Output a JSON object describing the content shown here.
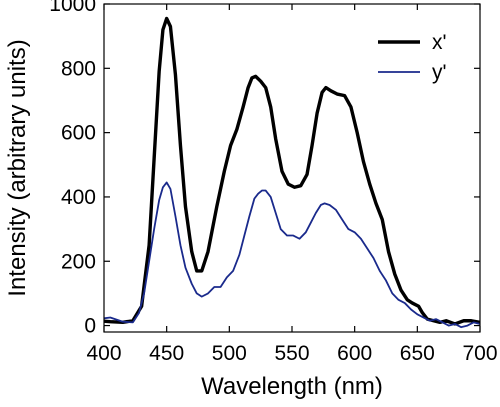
{
  "chart_data": {
    "type": "line",
    "title": "",
    "xlabel": "Wavelength (nm)",
    "ylabel": "Intensity (arbitrary units)",
    "xlim": [
      400,
      700
    ],
    "ylim": [
      -20,
      1000
    ],
    "xticks": [
      400,
      450,
      500,
      550,
      600,
      650,
      700
    ],
    "yticks": [
      0,
      200,
      400,
      600,
      800,
      1000
    ],
    "grid": false,
    "legend_position": "top-right",
    "series": [
      {
        "name": "x'",
        "color": "#000000",
        "points": [
          [
            395,
            15
          ],
          [
            405,
            12
          ],
          [
            415,
            10
          ],
          [
            423,
            15
          ],
          [
            430,
            60
          ],
          [
            436,
            250
          ],
          [
            440,
            520
          ],
          [
            444,
            790
          ],
          [
            447,
            920
          ],
          [
            450,
            955
          ],
          [
            453,
            930
          ],
          [
            457,
            780
          ],
          [
            461,
            560
          ],
          [
            465,
            370
          ],
          [
            470,
            230
          ],
          [
            474,
            170
          ],
          [
            478,
            170
          ],
          [
            483,
            230
          ],
          [
            490,
            370
          ],
          [
            496,
            480
          ],
          [
            501,
            560
          ],
          [
            506,
            610
          ],
          [
            511,
            680
          ],
          [
            515,
            740
          ],
          [
            518,
            770
          ],
          [
            521,
            775
          ],
          [
            525,
            760
          ],
          [
            529,
            740
          ],
          [
            533,
            680
          ],
          [
            537,
            580
          ],
          [
            542,
            480
          ],
          [
            547,
            440
          ],
          [
            552,
            430
          ],
          [
            557,
            435
          ],
          [
            562,
            470
          ],
          [
            566,
            560
          ],
          [
            570,
            660
          ],
          [
            574,
            725
          ],
          [
            577,
            740
          ],
          [
            581,
            730
          ],
          [
            586,
            720
          ],
          [
            592,
            715
          ],
          [
            597,
            680
          ],
          [
            602,
            600
          ],
          [
            607,
            510
          ],
          [
            612,
            440
          ],
          [
            617,
            380
          ],
          [
            622,
            330
          ],
          [
            627,
            230
          ],
          [
            632,
            160
          ],
          [
            637,
            110
          ],
          [
            642,
            80
          ],
          [
            646,
            70
          ],
          [
            651,
            60
          ],
          [
            654,
            40
          ],
          [
            658,
            20
          ],
          [
            663,
            15
          ],
          [
            668,
            10
          ],
          [
            673,
            15
          ],
          [
            680,
            5
          ],
          [
            687,
            15
          ],
          [
            693,
            15
          ],
          [
            700,
            10
          ],
          [
            706,
            5
          ]
        ]
      },
      {
        "name": "y'",
        "color": "#1a2a8c",
        "points": [
          [
            395,
            20
          ],
          [
            405,
            25
          ],
          [
            415,
            12
          ],
          [
            423,
            10
          ],
          [
            428,
            40
          ],
          [
            432,
            100
          ],
          [
            436,
            200
          ],
          [
            440,
            300
          ],
          [
            444,
            390
          ],
          [
            447,
            430
          ],
          [
            450,
            445
          ],
          [
            453,
            425
          ],
          [
            457,
            340
          ],
          [
            461,
            250
          ],
          [
            465,
            180
          ],
          [
            470,
            130
          ],
          [
            474,
            100
          ],
          [
            478,
            90
          ],
          [
            483,
            100
          ],
          [
            488,
            120
          ],
          [
            493,
            120
          ],
          [
            498,
            150
          ],
          [
            503,
            170
          ],
          [
            508,
            220
          ],
          [
            512,
            280
          ],
          [
            516,
            340
          ],
          [
            520,
            395
          ],
          [
            523,
            410
          ],
          [
            526,
            420
          ],
          [
            529,
            420
          ],
          [
            533,
            400
          ],
          [
            537,
            350
          ],
          [
            541,
            300
          ],
          [
            546,
            280
          ],
          [
            551,
            280
          ],
          [
            556,
            270
          ],
          [
            561,
            290
          ],
          [
            565,
            320
          ],
          [
            569,
            350
          ],
          [
            573,
            375
          ],
          [
            576,
            380
          ],
          [
            580,
            375
          ],
          [
            585,
            360
          ],
          [
            590,
            330
          ],
          [
            595,
            300
          ],
          [
            600,
            290
          ],
          [
            605,
            270
          ],
          [
            610,
            240
          ],
          [
            615,
            210
          ],
          [
            620,
            170
          ],
          [
            625,
            140
          ],
          [
            630,
            100
          ],
          [
            635,
            80
          ],
          [
            640,
            70
          ],
          [
            645,
            50
          ],
          [
            650,
            35
          ],
          [
            655,
            25
          ],
          [
            660,
            15
          ],
          [
            665,
            20
          ],
          [
            670,
            10
          ],
          [
            675,
            0
          ],
          [
            680,
            5
          ],
          [
            685,
            -5
          ],
          [
            690,
            0
          ],
          [
            695,
            10
          ],
          [
            700,
            5
          ],
          [
            706,
            10
          ]
        ]
      }
    ]
  }
}
